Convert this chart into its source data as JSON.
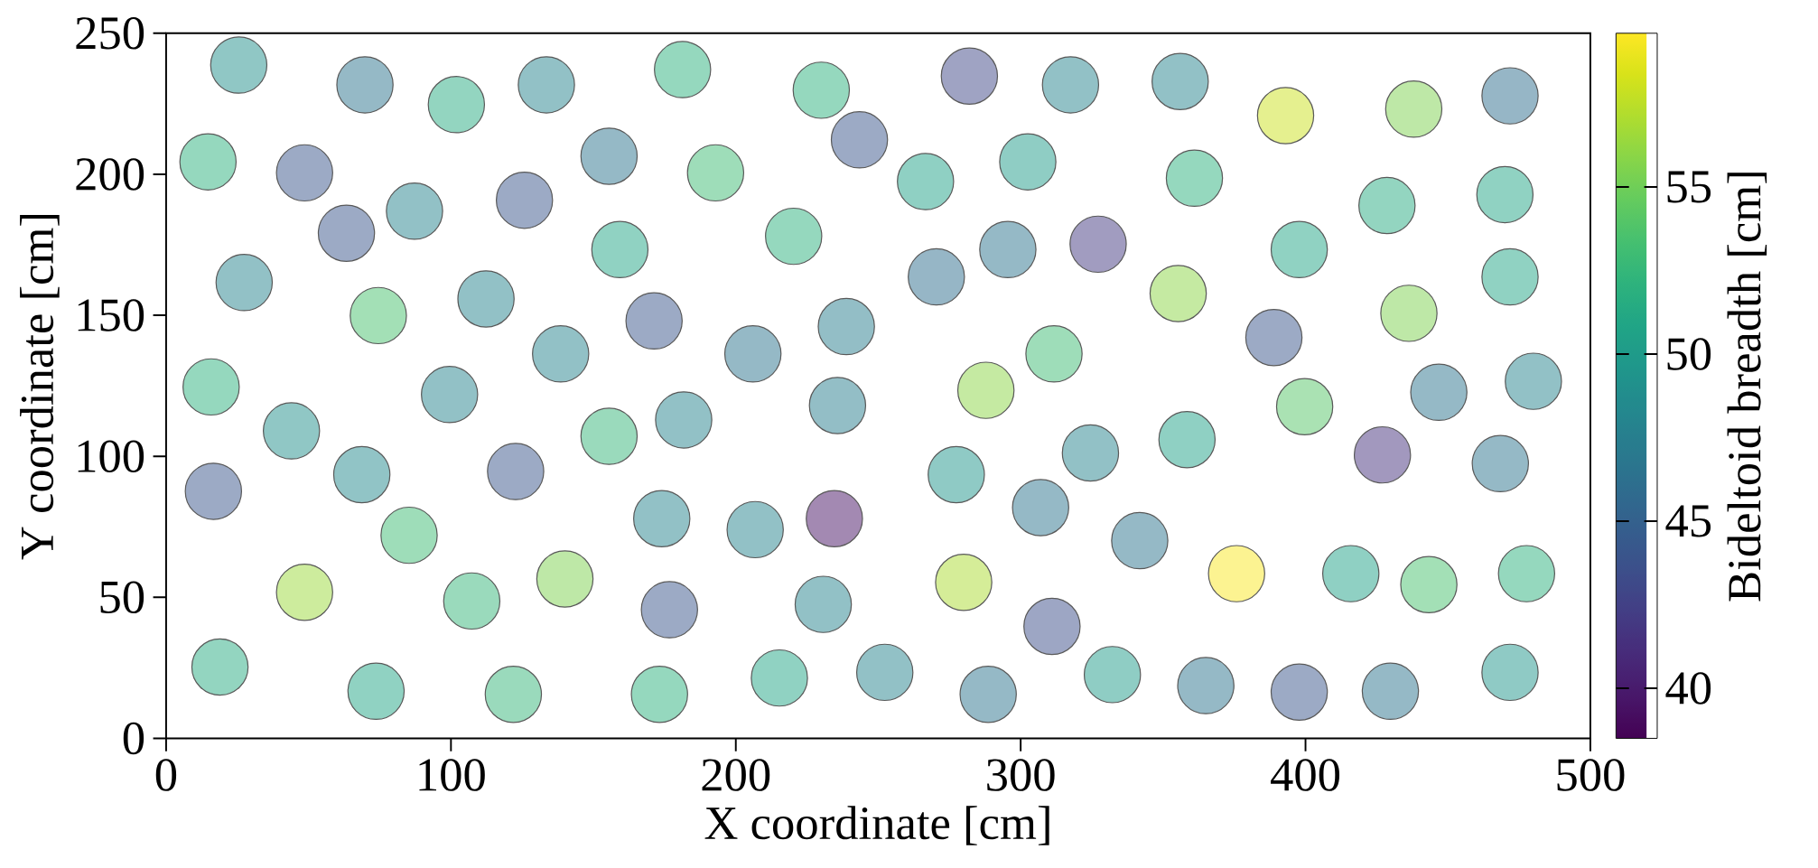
{
  "chart_data": {
    "type": "scatter",
    "xlabel": "X coordinate [cm]",
    "ylabel": "Y coordinate [cm]",
    "clabel": "Bideltoid breadth [cm]",
    "marker": "circle",
    "xlim": [
      0,
      500
    ],
    "ylim": [
      0,
      250
    ],
    "xticks": [
      0,
      100,
      200,
      300,
      400,
      500
    ],
    "yticks": [
      0,
      50,
      100,
      150,
      200,
      250
    ],
    "clim": [
      38.5,
      59.6
    ],
    "cticks": [
      40,
      45,
      50,
      55
    ],
    "x": [
      25.5,
      69.8,
      101.9,
      133.5,
      181.3,
      230,
      282,
      317.5,
      356,
      393,
      438,
      471.8,
      14.7,
      48.6,
      63.3,
      87.2,
      125.8,
      155.5,
      192.9,
      243.4,
      266.6,
      302.5,
      361,
      428.6,
      470,
      27.4,
      74.5,
      112.3,
      159.3,
      220.3,
      138.5,
      171.3,
      206,
      270.4,
      238.8,
      295.5,
      327.2,
      355.3,
      397.8,
      471.8,
      388.9,
      436.3,
      311.7,
      287.8,
      99.5,
      15.8,
      44,
      155.5,
      181.7,
      235.7,
      324.5,
      358.4,
      399.7,
      446.8,
      480,
      427,
      16.6,
      68.7,
      122.7,
      48.6,
      85.3,
      107.3,
      140,
      174,
      206.8,
      234.6,
      277.4,
      307,
      280,
      311,
      341.8,
      375.8,
      415.9,
      443.3,
      477.6,
      468.4,
      176.7,
      230.7,
      18.9,
      73.7,
      121.9,
      173.2,
      215.3,
      252.3,
      288.6,
      332.2,
      365,
      397.8,
      429.8,
      471.8
    ],
    "values": [
      238.7,
      231.7,
      224.7,
      231.7,
      237.1,
      229.8,
      234.8,
      231.7,
      232.9,
      220.8,
      223.1,
      227.8,
      204.4,
      200.5,
      179.1,
      186.9,
      190.8,
      206.4,
      200.5,
      212.2,
      197.4,
      204.4,
      198.6,
      188.9,
      192.8,
      161.6,
      149.9,
      155.8,
      173.3,
      178,
      136.3,
      148,
      136.3,
      163.6,
      146,
      173.3,
      175.2,
      157.7,
      173.3,
      163.6,
      142.1,
      150.7,
      136.3,
      123.4,
      121.9,
      124.6,
      109,
      107.1,
      112.9,
      118,
      101.2,
      105.9,
      117.6,
      122.7,
      126.6,
      100.5,
      87.6,
      93.5,
      94.6,
      51.8,
      72,
      48.7,
      56.5,
      77.9,
      74,
      77.9,
      93.5,
      81.8,
      55.3,
      39.7,
      70.1,
      58.4,
      58.4,
      54.5,
      58.4,
      97.4,
      45.6,
      47.5,
      25.3,
      16.7,
      15.6,
      15.6,
      21.4,
      23.4,
      15.6,
      22.6,
      18.7,
      16.4,
      16.7,
      23.4
    ],
    "cvalues": [
      49,
      46.5,
      51.5,
      48,
      52,
      52,
      43,
      48,
      48,
      58,
      55.5,
      46,
      52,
      44,
      44,
      48,
      44,
      46.5,
      53,
      44,
      50.5,
      50,
      52,
      51.5,
      51,
      48,
      53.5,
      48,
      51,
      52,
      48,
      44,
      46.5,
      46,
      47.5,
      46.5,
      42,
      56,
      51,
      51,
      44,
      55.5,
      53,
      56,
      48,
      52,
      49,
      52.5,
      48,
      47.5,
      48,
      50.5,
      54,
      46.5,
      48,
      41.5,
      44,
      48.5,
      44,
      56.5,
      53,
      52.5,
      55.5,
      48,
      48,
      39.5,
      49.5,
      46.5,
      57,
      43.5,
      46.5,
      59.5,
      50.5,
      53.5,
      52,
      46.5,
      44,
      48,
      51.5,
      51,
      52.5,
      52,
      51,
      48,
      46.5,
      50,
      46.5,
      44,
      46.5,
      49.5
    ]
  }
}
